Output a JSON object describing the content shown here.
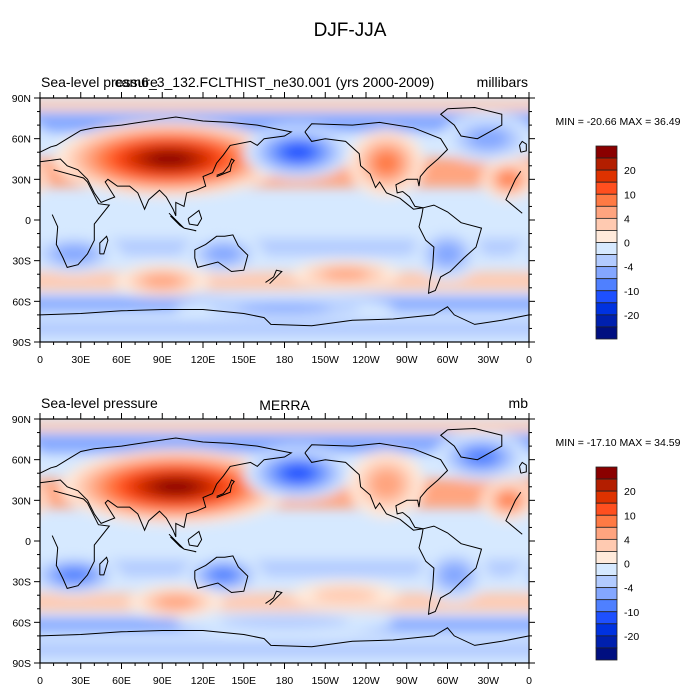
{
  "figure": {
    "title": "DJF-JJA"
  },
  "chart_data": [
    {
      "type": "heatmap",
      "projection": "cylindrical-equidistant",
      "left_title": "Sea-level pressure",
      "center_title": "cam6_3_132.FCLTHIST_ne30.001 (yrs 2000-2009)",
      "right_title": "millibars",
      "stats_text": "MIN = -20.66 MAX =  36.49",
      "min": -20.66,
      "max": 36.49,
      "x_ticks": [
        "0",
        "30E",
        "60E",
        "90E",
        "120E",
        "150E",
        "180",
        "150W",
        "120W",
        "90W",
        "60W",
        "30W",
        "0"
      ],
      "y_ticks": [
        "90N",
        "60N",
        "30N",
        "0",
        "30S",
        "60S",
        "90S"
      ],
      "xlim": [
        0,
        360
      ],
      "ylim": [
        -90,
        90
      ],
      "colorbar_labels": [
        "20",
        "10",
        "4",
        "0",
        "-4",
        "-10",
        "-20"
      ],
      "features": [
        {
          "name": "siberian-high-positive",
          "lon": 95,
          "lat": 45,
          "value": 30
        },
        {
          "name": "aleutian-low-negative",
          "lon": 190,
          "lat": 50,
          "value": -15
        },
        {
          "name": "north-america-positive",
          "lon": 255,
          "lat": 42,
          "value": 10
        },
        {
          "name": "icelandic-low-negative",
          "lon": 330,
          "lat": 60,
          "value": -8
        },
        {
          "name": "azores-positive",
          "lon": 345,
          "lat": 30,
          "value": 10
        },
        {
          "name": "australia-negative",
          "lon": 135,
          "lat": -25,
          "value": -8
        },
        {
          "name": "south-africa-negative",
          "lon": 25,
          "lat": -25,
          "value": -8
        },
        {
          "name": "south-indian-positive",
          "lon": 90,
          "lat": -45,
          "value": 8
        },
        {
          "name": "south-pacific-positive",
          "lon": 225,
          "lat": -40,
          "value": 8
        },
        {
          "name": "south-america-negative",
          "lon": 300,
          "lat": -25,
          "value": -8
        },
        {
          "name": "southern-ocean-negative",
          "lon": 180,
          "lat": -65,
          "value": -8
        }
      ]
    },
    {
      "type": "heatmap",
      "projection": "cylindrical-equidistant",
      "left_title": "Sea-level pressure",
      "center_title": "MERRA",
      "right_title": "mb",
      "stats_text": "MIN = -17.10 MAX =  34.59",
      "min": -17.1,
      "max": 34.59,
      "x_ticks": [
        "0",
        "30E",
        "60E",
        "90E",
        "120E",
        "150E",
        "180",
        "150W",
        "120W",
        "90W",
        "60W",
        "30W",
        "0"
      ],
      "y_ticks": [
        "90N",
        "60N",
        "30N",
        "0",
        "30S",
        "60S",
        "90S"
      ],
      "xlim": [
        0,
        360
      ],
      "ylim": [
        -90,
        90
      ],
      "colorbar_labels": [
        "20",
        "10",
        "4",
        "0",
        "-4",
        "-10",
        "-20"
      ],
      "features": [
        {
          "name": "siberian-high-positive",
          "lon": 100,
          "lat": 40,
          "value": 30
        },
        {
          "name": "aleutian-low-negative",
          "lon": 190,
          "lat": 50,
          "value": -15
        },
        {
          "name": "north-america-positive",
          "lon": 255,
          "lat": 42,
          "value": 8
        },
        {
          "name": "icelandic-low-negative",
          "lon": 325,
          "lat": 62,
          "value": -10
        },
        {
          "name": "azores-positive",
          "lon": 345,
          "lat": 30,
          "value": 10
        },
        {
          "name": "australia-negative",
          "lon": 135,
          "lat": -25,
          "value": -10
        },
        {
          "name": "south-africa-negative",
          "lon": 25,
          "lat": -25,
          "value": -10
        },
        {
          "name": "south-indian-positive",
          "lon": 100,
          "lat": -45,
          "value": 8
        },
        {
          "name": "south-pacific-positive",
          "lon": 225,
          "lat": -40,
          "value": 4
        },
        {
          "name": "south-america-negative",
          "lon": 305,
          "lat": -25,
          "value": -6
        },
        {
          "name": "southern-ocean-negative",
          "lon": 180,
          "lat": -60,
          "value": -4
        }
      ]
    }
  ],
  "colorbar": {
    "colors": [
      "#8a0000",
      "#b31e00",
      "#de3200",
      "#ff4f1f",
      "#ff7a44",
      "#ffa47f",
      "#ffcab1",
      "#ffeadb",
      "#d6e9ff",
      "#b2cbff",
      "#84a7ff",
      "#4f80ff",
      "#1e50ff",
      "#0032e0",
      "#0020ae",
      "#000f80"
    ]
  }
}
